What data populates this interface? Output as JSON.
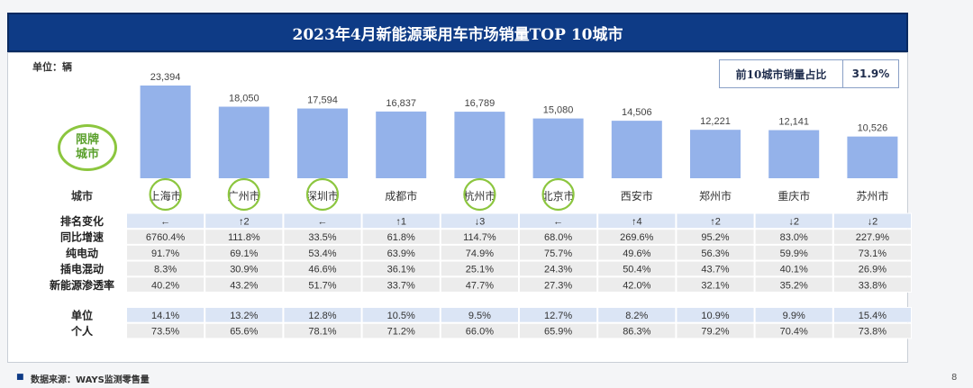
{
  "title": "2023年4月新能源乘用车市场销量TOP 10城市",
  "unit_label": "单位：辆",
  "share_box": {
    "label": "前10城市销量占比",
    "value": "31.9%"
  },
  "badge": {
    "line1": "限牌",
    "line2": "城市"
  },
  "footer": {
    "source": "数据来源：WAYS监测零售量",
    "page": "8"
  },
  "colors": {
    "bar": "#94b2ea",
    "header_bg": "#0e3b86",
    "row_blue": "#dbe5f5",
    "row_gray": "#ececec",
    "ring": "#8cc63f"
  },
  "chart_data": {
    "type": "bar",
    "categories": [
      "上海市",
      "广州市",
      "深圳市",
      "成都市",
      "杭州市",
      "北京市",
      "西安市",
      "郑州市",
      "重庆市",
      "苏州市"
    ],
    "value_labels": [
      "23,394",
      "18,050",
      "17,594",
      "16,837",
      "16,789",
      "15,080",
      "14,506",
      "12,221",
      "12,141",
      "10,526"
    ],
    "values": [
      23394,
      18050,
      17594,
      16837,
      16789,
      15080,
      14506,
      12221,
      12141,
      10526
    ],
    "category_header": "城市",
    "restricted_cities": [
      "上海市",
      "广州市",
      "深圳市",
      "杭州市",
      "北京市"
    ]
  },
  "table": {
    "rows": [
      {
        "label": "排名变化",
        "style": "blue",
        "values": [
          "←",
          "↑2",
          "←",
          "↑1",
          "↓3",
          "←",
          "↑4",
          "↑2",
          "↓2",
          "↓2"
        ]
      },
      {
        "label": "同比增速",
        "style": "gray",
        "values": [
          "6760.4%",
          "111.8%",
          "33.5%",
          "61.8%",
          "114.7%",
          "68.0%",
          "269.6%",
          "95.2%",
          "83.0%",
          "227.9%"
        ]
      },
      {
        "label": "纯电动",
        "style": "gray",
        "values": [
          "91.7%",
          "69.1%",
          "53.4%",
          "63.9%",
          "74.9%",
          "75.7%",
          "49.6%",
          "56.3%",
          "59.9%",
          "73.1%"
        ]
      },
      {
        "label": "插电混动",
        "style": "gray",
        "values": [
          "8.3%",
          "30.9%",
          "46.6%",
          "36.1%",
          "25.1%",
          "24.3%",
          "50.4%",
          "43.7%",
          "40.1%",
          "26.9%"
        ]
      },
      {
        "label": "新能源渗透率",
        "style": "gray",
        "values": [
          "40.2%",
          "43.2%",
          "51.7%",
          "33.7%",
          "47.7%",
          "27.3%",
          "42.0%",
          "32.1%",
          "35.2%",
          "33.8%"
        ]
      },
      {
        "label": "单位",
        "style": "blue",
        "gap_before": true,
        "values": [
          "14.1%",
          "13.2%",
          "12.8%",
          "10.5%",
          "9.5%",
          "12.7%",
          "8.2%",
          "10.9%",
          "9.9%",
          "15.4%"
        ]
      },
      {
        "label": "个人",
        "style": "gray",
        "values": [
          "73.5%",
          "65.6%",
          "78.1%",
          "71.2%",
          "66.0%",
          "65.9%",
          "86.3%",
          "79.2%",
          "70.4%",
          "73.8%"
        ]
      }
    ]
  }
}
